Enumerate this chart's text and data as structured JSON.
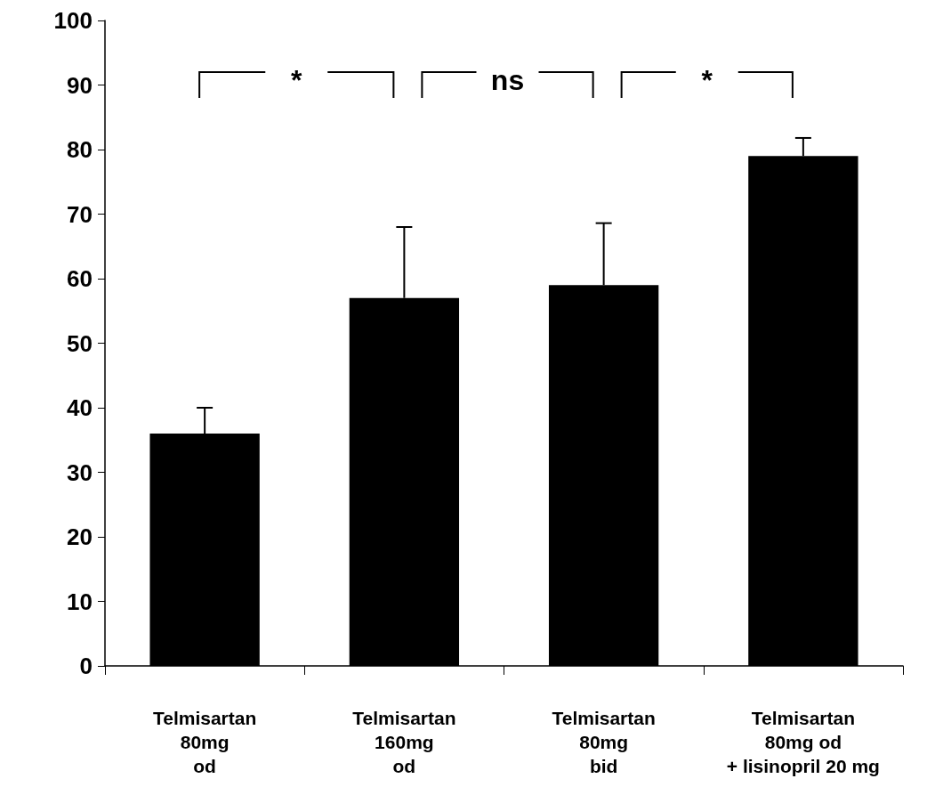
{
  "chart_data": {
    "type": "bar",
    "categories": [
      "Telmisartan\n80mg\nod",
      "Telmisartan\n160mg\nod",
      "Telmisartan\n80mg\nbid",
      "Telmisartan\n80mg od\n+ lisinopril 20 mg"
    ],
    "values": [
      36,
      57,
      59,
      79
    ],
    "errors": [
      [
        36,
        40
      ],
      [
        57,
        68
      ],
      [
        59,
        68.6
      ],
      [
        79,
        81.8
      ]
    ],
    "color": "#000000",
    "ylim": [
      0,
      100
    ],
    "yticks": [
      0,
      10,
      20,
      30,
      40,
      50,
      60,
      70,
      80,
      90,
      100
    ],
    "grid": false,
    "annotations": [
      "*",
      "ns",
      "*"
    ]
  }
}
